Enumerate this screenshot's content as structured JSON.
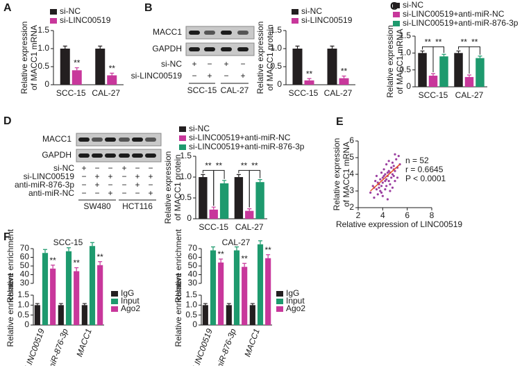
{
  "chart_data": [
    {
      "type": "bar",
      "panel": "A",
      "ylabel": [
        "Relative expression",
        "of MACC1 mRNA"
      ],
      "categories": [
        "SCC-15",
        "CAL-27"
      ],
      "series": [
        {
          "name": "si-NC",
          "color": "#231f20",
          "values": [
            1,
            1
          ],
          "errors": [
            0.07,
            0.07
          ]
        },
        {
          "name": "si-LINC00519",
          "color": "#c8379b",
          "values": [
            0.4,
            0.26
          ],
          "errors": [
            0.07,
            0.06
          ],
          "marks": [
            "**",
            "**"
          ]
        }
      ],
      "ylim": [
        0,
        1.5
      ],
      "yticks": [
        0,
        0.5,
        {
          "value": 1,
          "label": "1.0"
        },
        1.5
      ]
    },
    {
      "type": "bar",
      "panel": "B",
      "ylabel": [
        "Relative expression",
        "of MACC1 protein"
      ],
      "categories": [
        "SCC-15",
        "CAL-27"
      ],
      "series": [
        {
          "name": "si-NC",
          "color": "#231f20",
          "values": [
            1,
            1
          ],
          "errors": [
            0.07,
            0.07
          ]
        },
        {
          "name": "si-LINC00519",
          "color": "#c8379b",
          "values": [
            0.12,
            0.18
          ],
          "errors": [
            0.05,
            0.06
          ],
          "marks": [
            "**",
            "**"
          ]
        }
      ],
      "ylim": [
        0,
        1.5
      ],
      "yticks": [
        0,
        0.5,
        {
          "value": 1,
          "label": "1.0"
        },
        1.5
      ]
    },
    {
      "type": "bar",
      "panel": "C",
      "ylabel": [
        "Relative expression",
        "of MACC1 mRNA"
      ],
      "categories": [
        "SCC-15",
        "CAL-27"
      ],
      "series": [
        {
          "name": "si-NC",
          "color": "#231f20",
          "values": [
            1,
            1
          ],
          "errors": [
            0.06,
            0.06
          ]
        },
        {
          "name": "si-LINC00519+anti-miR-NC",
          "color": "#c8379b",
          "values": [
            0.33,
            0.29
          ],
          "errors": [
            0.06,
            0.06
          ],
          "marks": [
            "**",
            "**"
          ]
        },
        {
          "name": "si-LINC00519+anti-miR-876-3p",
          "color": "#1e9a6e",
          "values": [
            0.9,
            0.85
          ],
          "errors": [
            0.06,
            0.06
          ],
          "marks": [
            "**",
            "**"
          ]
        }
      ],
      "ylim": [
        0,
        1.5
      ],
      "yticks": [
        0,
        0.5,
        {
          "value": 1,
          "label": "1.0"
        },
        1.5
      ]
    },
    {
      "type": "bar",
      "panel": "D",
      "ylabel": [
        "Relative expression",
        "of MACC1 protein"
      ],
      "categories": [
        "SCC-15",
        "CAL-27"
      ],
      "series": [
        {
          "name": "si-NC",
          "color": "#231f20",
          "values": [
            1,
            1
          ],
          "errors": [
            0.06,
            0.06
          ]
        },
        {
          "name": "si-LINC00519+anti-miR-NC",
          "color": "#c8379b",
          "values": [
            0.22,
            0.19
          ],
          "errors": [
            0.06,
            0.05
          ],
          "marks": [
            "**",
            "**"
          ]
        },
        {
          "name": "si-LINC00519+anti-miR-876-3p",
          "color": "#1e9a6e",
          "values": [
            0.85,
            0.88
          ],
          "errors": [
            0.07,
            0.06
          ],
          "marks": [
            "**",
            "**"
          ]
        }
      ],
      "ylim": [
        0,
        1.5
      ],
      "yticks": [
        0,
        0.5,
        {
          "value": 1,
          "label": "1.0"
        },
        1.5
      ]
    },
    {
      "type": "scatter",
      "panel": "E",
      "xlabel": "Relative expression of LINC00519",
      "ylabel": [
        "Relative expression",
        "of MACC1 mRNA"
      ],
      "color": "#9b3fa0",
      "x": [
        3.0,
        3.2,
        3.3,
        3.4,
        3.5,
        3.5,
        3.6,
        3.7,
        3.8,
        3.8,
        3.9,
        3.9,
        4.0,
        4.0,
        4.1,
        4.1,
        4.2,
        4.2,
        4.3,
        4.3,
        4.4,
        4.4,
        4.5,
        4.5,
        4.5,
        4.6,
        4.6,
        4.7,
        4.7,
        4.8,
        4.8,
        4.9,
        4.9,
        5.0,
        5.0,
        5.1,
        5.2,
        5.3,
        3.3,
        3.6,
        4.0,
        4.4,
        4.8,
        5.2,
        3.9,
        4.2,
        4.6,
        5.0,
        4.3,
        3.7,
        4.9,
        5.4
      ],
      "y": [
        2.9,
        3.3,
        2.6,
        3.6,
        3.1,
        3.9,
        2.8,
        3.4,
        3.7,
        3.0,
        4.1,
        3.3,
        3.5,
        2.7,
        3.9,
        4.3,
        3.1,
        3.6,
        4.6,
        3.3,
        3.9,
        2.5,
        4.2,
        3.6,
        4.8,
        3.4,
        4.1,
        3.8,
        4.4,
        3.2,
        4.7,
        3.9,
        4.5,
        4.2,
        3.6,
        4.9,
        4.4,
        5.1,
        3.2,
        3.5,
        3.8,
        4.1,
        4.0,
        3.8,
        2.9,
        4.0,
        3.0,
        5.2,
        3.7,
        3.2,
        4.3,
        4.6
      ],
      "fit": {
        "color": "#e8501e",
        "x": [
          3.0,
          5.4
        ],
        "y": [
          3.0,
          4.6
        ]
      },
      "annotations": [
        "n = 52",
        "r = 0.6645",
        "P < 0.0001"
      ],
      "xlim": [
        2,
        8
      ],
      "xticks": [
        2,
        4,
        6,
        8
      ],
      "ylim": [
        2,
        6
      ],
      "yticks": [
        2,
        3,
        4,
        5,
        6
      ]
    },
    {
      "type": "bar",
      "panel": "F",
      "title": "SCC-15",
      "ylabel": [
        "Relative enrichment",
        "Relative enrichment"
      ],
      "categories": [
        "LINC00519",
        "miR-876-3p",
        "MACC1"
      ],
      "series": [
        {
          "name": "IgG",
          "color": "#231f20",
          "values": [
            1,
            1,
            1
          ],
          "errors": [
            0.08,
            0.08,
            0.08
          ]
        },
        {
          "name": "Input",
          "color": "#1e9a6e",
          "values": [
            65,
            67,
            73
          ],
          "errors": [
            4,
            4,
            4
          ]
        },
        {
          "name": "Ago2",
          "color": "#c8379b",
          "values": [
            47,
            44,
            51
          ],
          "errors": [
            4,
            4,
            4
          ],
          "marks": [
            "**",
            "**",
            "**"
          ]
        }
      ],
      "ylim": [
        0,
        1.5
      ],
      "yticks": [
        0,
        0.5,
        {
          "value": 1,
          "label": "1.0"
        },
        1.5
      ],
      "ylim_upper": [
        30,
        70
      ],
      "yticks_upper": [
        30,
        40,
        50,
        60,
        70
      ]
    },
    {
      "type": "bar",
      "title": "CAL-27",
      "ylabel": [
        "Relative enrichment",
        "Relative enrichment"
      ],
      "categories": [
        "LINC00519",
        "miR-876-3p",
        "MACC1"
      ],
      "series": [
        {
          "name": "IgG",
          "color": "#231f20",
          "values": [
            1,
            1,
            1
          ],
          "errors": [
            0.08,
            0.08,
            0.08
          ]
        },
        {
          "name": "Input",
          "color": "#1e9a6e",
          "values": [
            68,
            68,
            75
          ],
          "errors": [
            4,
            4,
            4
          ]
        },
        {
          "name": "Ago2",
          "color": "#c8379b",
          "values": [
            54,
            49,
            59
          ],
          "errors": [
            4,
            4,
            4
          ],
          "marks": [
            "**",
            "**",
            "**"
          ]
        }
      ],
      "ylim": [
        0,
        1.5
      ],
      "yticks": [
        0,
        0.5,
        {
          "value": 1,
          "label": "1.0"
        },
        1.5
      ],
      "ylim_upper": [
        30,
        70
      ],
      "yticks_upper": [
        30,
        40,
        50,
        60,
        70
      ]
    }
  ],
  "blots": [
    {
      "rows": [
        "MACC1",
        "GAPDH"
      ],
      "conditions": [
        {
          "label": "si-NC",
          "signs": [
            "+",
            "−",
            "+",
            "−"
          ]
        },
        {
          "label": "si-LINC00519",
          "signs": [
            "−",
            "+",
            "−",
            "+"
          ]
        }
      ],
      "groups": [
        "SCC-15",
        "CAL-27"
      ]
    },
    {
      "rows": [
        "MACC1",
        "GAPDH"
      ],
      "conditions": [
        {
          "label": "si-NC",
          "signs": [
            "+",
            "−",
            "−",
            "+",
            "−",
            "−"
          ]
        },
        {
          "label": "si-LINC00519",
          "signs": [
            "−",
            "+",
            "+",
            "−",
            "+",
            "+"
          ]
        },
        {
          "label": "anti-miR-876-3p",
          "signs": [
            "−",
            "+",
            "−",
            "−",
            "+",
            "−"
          ]
        },
        {
          "label": "anti-miR-NC",
          "signs": [
            "−",
            "−",
            "+",
            "−",
            "−",
            "+"
          ]
        }
      ],
      "groups": [
        "SW480",
        "HCT116"
      ]
    }
  ]
}
